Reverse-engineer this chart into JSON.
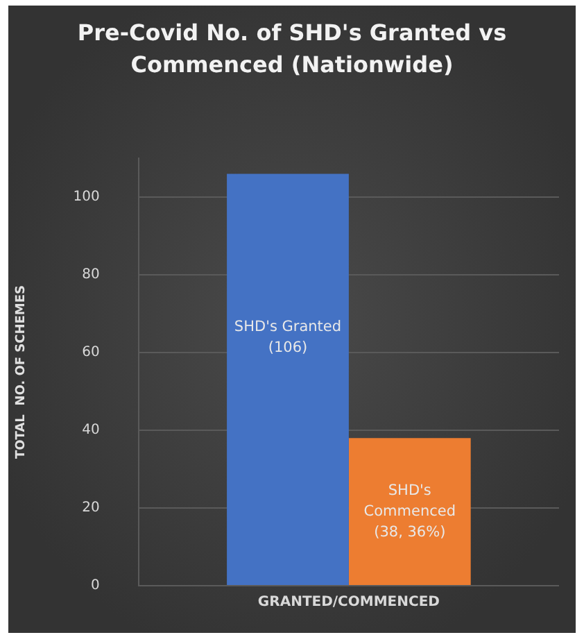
{
  "chart_data": {
    "type": "bar",
    "title": "Pre-Covid No. of SHD's Granted vs Commenced (Nationwide)",
    "ylabel": "TOTAL  NO. OF SCHEMES",
    "categories": [
      "GRANTED/COMMENCED"
    ],
    "series": [
      {
        "name": "SHD's Granted",
        "color": "#4472c4",
        "values": [
          106
        ],
        "value_labels": [
          "(106)"
        ]
      },
      {
        "name": "SHD's Commenced",
        "color": "#ed7d31",
        "values": [
          38
        ],
        "value_labels": [
          "(38, 36%)"
        ]
      }
    ],
    "ylim": [
      0,
      110
    ],
    "yticks": [
      0,
      20,
      40,
      60,
      80,
      100
    ],
    "grid": "y",
    "legend": false
  }
}
